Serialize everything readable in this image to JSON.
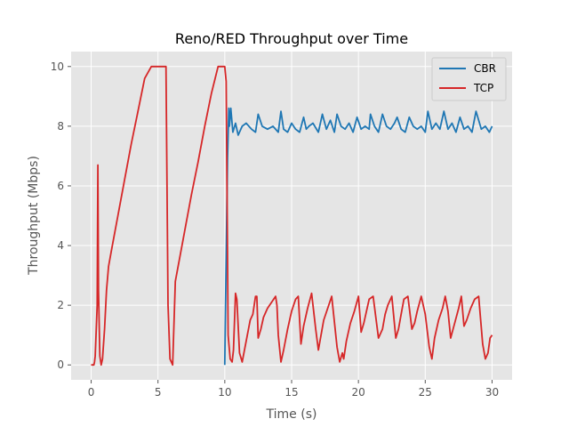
{
  "chart_data": {
    "type": "line",
    "title": "Reno/RED Throughput over Time",
    "xlabel": "Time (s)",
    "ylabel": "Throughput (Mbps)",
    "xlim": [
      -1.5,
      31.5
    ],
    "ylim": [
      -0.5,
      10.5
    ],
    "xticks": [
      0,
      5,
      10,
      15,
      20,
      25,
      30
    ],
    "yticks": [
      0,
      2,
      4,
      6,
      8,
      10
    ],
    "grid": true,
    "background": "#e5e5e5",
    "legend_position": "top-right",
    "series": [
      {
        "name": "CBR",
        "color": "#1f77b4",
        "x": [
          10.0,
          10.2,
          10.3,
          10.35,
          10.45,
          10.6,
          10.8,
          11.0,
          11.3,
          11.6,
          12.0,
          12.3,
          12.5,
          12.8,
          13.2,
          13.6,
          14.0,
          14.2,
          14.4,
          14.7,
          15.0,
          15.3,
          15.6,
          15.9,
          16.1,
          16.3,
          16.6,
          17.0,
          17.3,
          17.6,
          17.9,
          18.2,
          18.4,
          18.7,
          19.0,
          19.3,
          19.6,
          19.9,
          20.2,
          20.5,
          20.8,
          20.9,
          21.2,
          21.5,
          21.8,
          22.1,
          22.4,
          22.7,
          22.9,
          23.2,
          23.5,
          23.8,
          24.1,
          24.4,
          24.7,
          25.0,
          25.2,
          25.5,
          25.8,
          26.1,
          26.4,
          26.7,
          27.0,
          27.3,
          27.6,
          27.9,
          28.2,
          28.5,
          28.8,
          29.2,
          29.5,
          29.8,
          30.0
        ],
        "y": [
          0.0,
          6.9,
          8.6,
          8.0,
          8.6,
          7.8,
          8.1,
          7.7,
          8.0,
          8.1,
          7.9,
          7.8,
          8.4,
          8.0,
          7.9,
          8.0,
          7.8,
          8.5,
          7.9,
          7.8,
          8.1,
          7.9,
          7.8,
          8.3,
          7.9,
          8.0,
          8.1,
          7.8,
          8.4,
          7.9,
          8.2,
          7.8,
          8.4,
          8.0,
          7.9,
          8.1,
          7.8,
          8.3,
          7.9,
          8.0,
          7.9,
          8.4,
          8.0,
          7.8,
          8.4,
          8.0,
          7.9,
          8.1,
          8.3,
          7.9,
          7.8,
          8.3,
          8.0,
          7.9,
          8.0,
          7.8,
          8.5,
          7.9,
          8.1,
          7.9,
          8.5,
          7.9,
          8.1,
          7.8,
          8.3,
          7.9,
          8.0,
          7.8,
          8.5,
          7.9,
          8.0,
          7.8,
          8.0
        ]
      },
      {
        "name": "TCP",
        "color": "#d62728",
        "x": [
          0.0,
          0.1,
          0.2,
          0.25,
          0.3,
          0.45,
          0.5,
          0.55,
          0.65,
          0.75,
          0.85,
          1.0,
          1.15,
          1.3,
          1.5,
          2.0,
          2.5,
          3.0,
          3.5,
          4.0,
          4.5,
          4.7,
          5.0,
          5.3,
          5.6,
          5.75,
          5.9,
          6.1,
          6.3,
          7.0,
          7.5,
          8.0,
          8.5,
          9.0,
          9.5,
          9.7,
          10.0,
          10.1,
          10.25,
          10.4,
          10.55,
          10.65,
          10.8,
          10.9,
          11.1,
          11.3,
          11.6,
          11.9,
          12.1,
          12.3,
          12.4,
          12.5,
          12.7,
          12.9,
          13.2,
          13.5,
          13.8,
          13.9,
          14.0,
          14.2,
          14.4,
          14.7,
          15.0,
          15.3,
          15.5,
          15.7,
          15.9,
          16.2,
          16.5,
          16.8,
          17.0,
          17.2,
          17.4,
          17.7,
          18.0,
          18.4,
          18.6,
          18.8,
          18.9,
          19.1,
          19.4,
          19.7,
          20.0,
          20.2,
          20.4,
          20.6,
          20.8,
          21.1,
          21.5,
          21.8,
          22.0,
          22.2,
          22.5,
          22.8,
          23.0,
          23.2,
          23.4,
          23.7,
          24.0,
          24.2,
          24.4,
          24.7,
          25.0,
          25.3,
          25.5,
          25.7,
          26.0,
          26.3,
          26.5,
          26.7,
          26.9,
          27.2,
          27.5,
          27.7,
          27.9,
          28.1,
          28.4,
          28.7,
          29.0,
          29.3,
          29.5,
          29.7,
          29.85,
          30.0
        ],
        "y": [
          0.0,
          0.0,
          0.0,
          0.1,
          0.3,
          2.0,
          6.7,
          2.5,
          0.3,
          0.0,
          0.2,
          1.2,
          2.5,
          3.3,
          3.8,
          5.0,
          6.2,
          7.4,
          8.5,
          9.6,
          10.0,
          10.0,
          10.0,
          10.0,
          10.0,
          2.0,
          0.2,
          0.0,
          2.8,
          4.5,
          5.7,
          6.8,
          8.0,
          9.1,
          10.0,
          10.0,
          10.0,
          9.5,
          1.0,
          0.2,
          0.1,
          0.5,
          2.4,
          2.2,
          0.4,
          0.1,
          0.8,
          1.5,
          1.7,
          2.3,
          2.3,
          0.9,
          1.2,
          1.6,
          1.9,
          2.1,
          2.3,
          2.0,
          1.0,
          0.1,
          0.5,
          1.2,
          1.8,
          2.2,
          2.3,
          0.7,
          1.3,
          1.9,
          2.4,
          1.2,
          0.5,
          1.0,
          1.5,
          1.9,
          2.3,
          0.6,
          0.1,
          0.4,
          0.2,
          0.8,
          1.4,
          1.8,
          2.3,
          1.1,
          1.4,
          1.8,
          2.2,
          2.3,
          0.9,
          1.2,
          1.7,
          2.0,
          2.3,
          0.9,
          1.2,
          1.7,
          2.2,
          2.3,
          1.2,
          1.4,
          1.8,
          2.3,
          1.7,
          0.6,
          0.2,
          0.9,
          1.5,
          1.9,
          2.3,
          1.8,
          0.9,
          1.4,
          1.9,
          2.3,
          1.3,
          1.5,
          1.9,
          2.2,
          2.3,
          0.7,
          0.2,
          0.4,
          0.9,
          1.0
        ]
      }
    ]
  }
}
